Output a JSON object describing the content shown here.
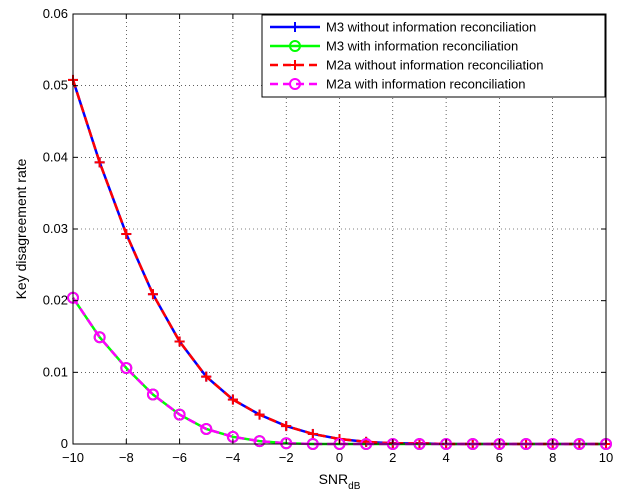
{
  "chart_data": {
    "type": "line",
    "title": "",
    "xlabel": "SNR",
    "xlabel_subscript": "dB",
    "ylabel": "Key disagreement rate",
    "xlim": [
      -10,
      10
    ],
    "ylim": [
      0,
      0.06
    ],
    "xticks": [
      -10,
      -8,
      -6,
      -4,
      -2,
      0,
      2,
      4,
      6,
      8,
      10
    ],
    "yticks": [
      0,
      0.01,
      0.02,
      0.03,
      0.04,
      0.05,
      0.06
    ],
    "xtick_labels": [
      "−10",
      "−8",
      "−6",
      "−4",
      "−2",
      "0",
      "2",
      "4",
      "6",
      "8",
      "10"
    ],
    "ytick_labels": [
      "0",
      "0.01",
      "0.02",
      "0.03",
      "0.04",
      "0.05",
      "0.06"
    ],
    "grid": true,
    "legend_position": "top-right",
    "x": [
      -10,
      -9,
      -8,
      -7,
      -6,
      -5,
      -4,
      -3,
      -2,
      -1,
      0,
      1,
      2,
      3,
      4,
      5,
      6,
      7,
      8,
      9,
      10
    ],
    "series": [
      {
        "name": "M3 without information reconciliation",
        "color": "#0000ff",
        "line_style": "solid",
        "marker": "plus",
        "values": [
          0.0508,
          0.0393,
          0.0293,
          0.0209,
          0.0143,
          0.0094,
          0.0062,
          0.0041,
          0.0025,
          0.0014,
          0.0007,
          0.0003,
          0.0001,
          0.0001,
          0.0,
          0.0,
          0.0,
          0.0,
          0.0,
          0.0,
          0.0
        ]
      },
      {
        "name": "M3 with information reconciliation",
        "color": "#00ff00",
        "line_style": "solid",
        "marker": "circle",
        "values": [
          0.0204,
          0.0149,
          0.0106,
          0.0069,
          0.0041,
          0.0021,
          0.001,
          0.0004,
          0.0001,
          0.0,
          0.0,
          0.0,
          0.0,
          0.0,
          0.0,
          0.0,
          0.0,
          0.0,
          0.0,
          0.0,
          0.0
        ]
      },
      {
        "name": "M2a without information reconciliation",
        "color": "#ff0000",
        "line_style": "dashed",
        "marker": "plus",
        "values": [
          0.0508,
          0.0393,
          0.0293,
          0.0209,
          0.0143,
          0.0094,
          0.0062,
          0.0041,
          0.0025,
          0.0014,
          0.0007,
          0.0003,
          0.0001,
          0.0001,
          0.0,
          0.0,
          0.0,
          0.0,
          0.0,
          0.0,
          0.0
        ]
      },
      {
        "name": "M2a with information reconciliation",
        "color": "#ff00ff",
        "line_style": "dashed",
        "marker": "circle",
        "values": [
          0.0204,
          0.0149,
          0.0106,
          0.0069,
          0.0041,
          0.0021,
          0.001,
          0.0004,
          0.0001,
          0.0,
          0.0,
          0.0,
          0.0,
          0.0,
          0.0,
          0.0,
          0.0,
          0.0,
          0.0,
          0.0,
          0.0
        ]
      }
    ]
  }
}
